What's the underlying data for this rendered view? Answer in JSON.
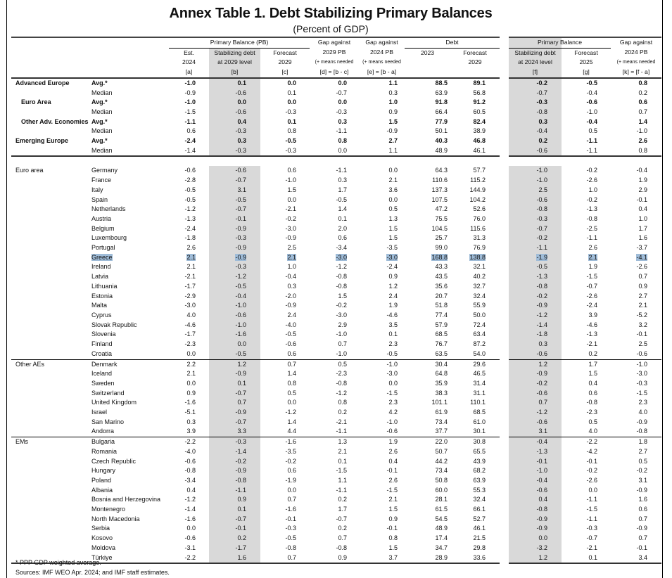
{
  "title": "Annex Table 1. Debt Stabilizing Primary Balances",
  "subtitle": "(Percent of GDP)",
  "header": {
    "group_pb": "Primary Balance (PB)",
    "group_debt": "Debt",
    "group_pb_right": "Primary Balance",
    "a": [
      "Est.",
      "2024",
      "[a]"
    ],
    "b": [
      "Stabilizing debt",
      "at 2029 level",
      "[b]"
    ],
    "c": [
      "Forecast",
      "2029",
      "[c]"
    ],
    "d": [
      "Gap against",
      "2029 PB",
      "(+ means needed",
      "[d] = [b - c]"
    ],
    "e": [
      "Gap against",
      "2024 PB",
      "(+ means needed",
      "[e] = [b - a]"
    ],
    "debt2023": [
      "2023"
    ],
    "debt2029": [
      "Forecast",
      "2029"
    ],
    "f": [
      "Stabilizing debt",
      "at 2024 level",
      "[f]"
    ],
    "g": [
      "Forecast",
      "2025",
      "[g]"
    ],
    "k": [
      "Gap against",
      "2024 PB",
      "(+ means needed",
      "[k] = [f - a]"
    ]
  },
  "summary_rows": [
    {
      "group": "Advanced Europe",
      "stat": "Avg.*",
      "bold": true,
      "indent": false,
      "values": [
        "-1.0",
        "0.1",
        "0.0",
        "0.0",
        "1.1",
        "88.5",
        "89.1",
        "-0.2",
        "-0.5",
        "0.8"
      ]
    },
    {
      "group": "",
      "stat": "Median",
      "bold": false,
      "values": [
        "-0.9",
        "-0.6",
        "0.1",
        "-0.7",
        "0.3",
        "63.9",
        "56.8",
        "-0.7",
        "-0.4",
        "0.2"
      ]
    },
    {
      "group": "Euro Area",
      "stat": "Avg.*",
      "bold": true,
      "indent": true,
      "values": [
        "-1.0",
        "0.0",
        "0.0",
        "0.0",
        "1.0",
        "91.8",
        "91.2",
        "-0.3",
        "-0.6",
        "0.6"
      ]
    },
    {
      "group": "",
      "stat": "Median",
      "bold": false,
      "values": [
        "-1.5",
        "-0.6",
        "-0.3",
        "-0.3",
        "0.9",
        "66.4",
        "60.5",
        "-0.8",
        "-1.0",
        "0.7"
      ]
    },
    {
      "group": "Other Adv. Economies",
      "stat": "Avg.*",
      "bold": true,
      "indent": true,
      "values": [
        "-1.1",
        "0.4",
        "0.1",
        "0.3",
        "1.5",
        "77.9",
        "82.4",
        "0.3",
        "-0.4",
        "1.4"
      ]
    },
    {
      "group": "",
      "stat": "Median",
      "bold": false,
      "values": [
        "0.6",
        "-0.3",
        "0.8",
        "-1.1",
        "-0.9",
        "50.1",
        "38.9",
        "-0.4",
        "0.5",
        "-1.0"
      ]
    },
    {
      "group": "Emerging Europe",
      "stat": "Avg.*",
      "bold": true,
      "indent": false,
      "values": [
        "-2.4",
        "0.3",
        "-0.5",
        "0.8",
        "2.7",
        "40.3",
        "46.8",
        "0.2",
        "-1.1",
        "2.6"
      ]
    },
    {
      "group": "",
      "stat": "Median",
      "bold": false,
      "values": [
        "-1.4",
        "-0.3",
        "-0.3",
        "0.0",
        "1.1",
        "48.9",
        "46.1",
        "-0.6",
        "-1.1",
        "0.8"
      ]
    }
  ],
  "groups": [
    {
      "name": "Euro area",
      "rows": [
        {
          "country": "Germany",
          "values": [
            "-0.6",
            "-0.6",
            "0.6",
            "-1.1",
            "0.0",
            "64.3",
            "57.7",
            "-1.0",
            "-0.2",
            "-0.4"
          ]
        },
        {
          "country": "France",
          "values": [
            "-2.8",
            "-0.7",
            "-1.0",
            "0.3",
            "2.1",
            "110.6",
            "115.2",
            "-1.0",
            "-2.6",
            "1.9"
          ]
        },
        {
          "country": "Italy",
          "values": [
            "-0.5",
            "3.1",
            "1.5",
            "1.7",
            "3.6",
            "137.3",
            "144.9",
            "2.5",
            "1.0",
            "2.9"
          ]
        },
        {
          "country": "Spain",
          "values": [
            "-0.5",
            "-0.5",
            "0.0",
            "-0.5",
            "0.0",
            "107.5",
            "104.2",
            "-0.6",
            "-0.2",
            "-0.1"
          ]
        },
        {
          "country": "Netherlands",
          "values": [
            "-1.2",
            "-0.7",
            "-2.1",
            "1.4",
            "0.5",
            "47.2",
            "52.6",
            "-0.8",
            "-1.3",
            "0.4"
          ]
        },
        {
          "country": "Austria",
          "values": [
            "-1.3",
            "-0.1",
            "-0.2",
            "0.1",
            "1.3",
            "75.5",
            "76.0",
            "-0.3",
            "-0.8",
            "1.0"
          ]
        },
        {
          "country": "Belgium",
          "values": [
            "-2.4",
            "-0.9",
            "-3.0",
            "2.0",
            "1.5",
            "104.5",
            "115.6",
            "-0.7",
            "-2.5",
            "1.7"
          ]
        },
        {
          "country": "Luxembourg",
          "values": [
            "-1.8",
            "-0.3",
            "-0.9",
            "0.6",
            "1.5",
            "25.7",
            "31.3",
            "-0.2",
            "-1.1",
            "1.6"
          ]
        },
        {
          "country": "Portugal",
          "values": [
            "2.6",
            "-0.9",
            "2.5",
            "-3.4",
            "-3.5",
            "99.0",
            "76.9",
            "-1.1",
            "2.6",
            "-3.7"
          ]
        },
        {
          "country": "Greece",
          "highlight": true,
          "values": [
            "2.1",
            "-0.9",
            "2.1",
            "-3.0",
            "-3.0",
            "168.8",
            "138.8",
            "-1.9",
            "2.1",
            "-4.1"
          ]
        },
        {
          "country": "Ireland",
          "values": [
            "2.1",
            "-0.3",
            "1.0",
            "-1.2",
            "-2.4",
            "43.3",
            "32.1",
            "-0.5",
            "1.9",
            "-2.6"
          ]
        },
        {
          "country": "Latvia",
          "values": [
            "-2.1",
            "-1.2",
            "-0.4",
            "-0.8",
            "0.9",
            "43.5",
            "40.2",
            "-1.3",
            "-1.5",
            "0.7"
          ]
        },
        {
          "country": "Lithuania",
          "values": [
            "-1.7",
            "-0.5",
            "0.3",
            "-0.8",
            "1.2",
            "35.6",
            "32.7",
            "-0.8",
            "-0.7",
            "0.9"
          ]
        },
        {
          "country": "Estonia",
          "values": [
            "-2.9",
            "-0.4",
            "-2.0",
            "1.5",
            "2.4",
            "20.7",
            "32.4",
            "-0.2",
            "-2.6",
            "2.7"
          ]
        },
        {
          "country": "Malta",
          "values": [
            "-3.0",
            "-1.0",
            "-0.9",
            "-0.2",
            "1.9",
            "51.8",
            "55.9",
            "-0.9",
            "-2.4",
            "2.1"
          ]
        },
        {
          "country": "Cyprus",
          "values": [
            "4.0",
            "-0.6",
            "2.4",
            "-3.0",
            "-4.6",
            "77.4",
            "50.0",
            "-1.2",
            "3.9",
            "-5.2"
          ]
        },
        {
          "country": "Slovak Republic",
          "values": [
            "-4.6",
            "-1.0",
            "-4.0",
            "2.9",
            "3.5",
            "57.9",
            "72.4",
            "-1.4",
            "-4.6",
            "3.2"
          ]
        },
        {
          "country": "Slovenia",
          "values": [
            "-1.7",
            "-1.6",
            "-0.5",
            "-1.0",
            "0.1",
            "68.5",
            "63.4",
            "-1.8",
            "-1.3",
            "-0.1"
          ]
        },
        {
          "country": "Finland",
          "values": [
            "-2.3",
            "0.0",
            "-0.6",
            "0.7",
            "2.3",
            "76.7",
            "87.2",
            "0.3",
            "-2.1",
            "2.5"
          ]
        },
        {
          "country": "Croatia",
          "values": [
            "0.0",
            "-0.5",
            "0.6",
            "-1.0",
            "-0.5",
            "63.5",
            "54.0",
            "-0.6",
            "0.2",
            "-0.6"
          ]
        }
      ]
    },
    {
      "name": "Other AEs",
      "rows": [
        {
          "country": "Denmark",
          "values": [
            "2.2",
            "1.2",
            "0.7",
            "0.5",
            "-1.0",
            "30.4",
            "29.6",
            "1.2",
            "1.7",
            "-1.0"
          ]
        },
        {
          "country": "Iceland",
          "values": [
            "2.1",
            "-0.9",
            "1.4",
            "-2.3",
            "-3.0",
            "64.8",
            "46.5",
            "-0.9",
            "1.5",
            "-3.0"
          ]
        },
        {
          "country": "Sweden",
          "values": [
            "0.0",
            "0.1",
            "0.8",
            "-0.8",
            "0.0",
            "35.9",
            "31.4",
            "-0.2",
            "0.4",
            "-0.3"
          ]
        },
        {
          "country": "Switzerland",
          "values": [
            "0.9",
            "-0.7",
            "0.5",
            "-1.2",
            "-1.5",
            "38.3",
            "31.1",
            "-0.6",
            "0.6",
            "-1.5"
          ]
        },
        {
          "country": "United Kingdom",
          "values": [
            "-1.6",
            "0.7",
            "0.0",
            "0.8",
            "2.3",
            "101.1",
            "110.1",
            "0.7",
            "-0.8",
            "2.3"
          ]
        },
        {
          "country": "Israel",
          "values": [
            "-5.1",
            "-0.9",
            "-1.2",
            "0.2",
            "4.2",
            "61.9",
            "68.5",
            "-1.2",
            "-2.3",
            "4.0"
          ]
        },
        {
          "country": "San Marino",
          "values": [
            "0.3",
            "-0.7",
            "1.4",
            "-2.1",
            "-1.0",
            "73.4",
            "61.0",
            "-0.6",
            "0.5",
            "-0.9"
          ]
        },
        {
          "country": "Andorra",
          "values": [
            "3.9",
            "3.3",
            "4.4",
            "-1.1",
            "-0.6",
            "37.7",
            "30.1",
            "3.1",
            "4.0",
            "-0.8"
          ]
        }
      ]
    },
    {
      "name": "EMs",
      "rows": [
        {
          "country": "Bulgaria",
          "values": [
            "-2.2",
            "-0.3",
            "-1.6",
            "1.3",
            "1.9",
            "22.0",
            "30.8",
            "-0.4",
            "-2.2",
            "1.8"
          ]
        },
        {
          "country": "Romania",
          "values": [
            "-4.0",
            "-1.4",
            "-3.5",
            "2.1",
            "2.6",
            "50.7",
            "65.5",
            "-1.3",
            "-4.2",
            "2.7"
          ]
        },
        {
          "country": "Czech Republic",
          "values": [
            "-0.6",
            "-0.2",
            "-0.2",
            "0.1",
            "0.4",
            "44.2",
            "43.9",
            "-0.1",
            "-0.1",
            "0.5"
          ]
        },
        {
          "country": "Hungary",
          "values": [
            "-0.8",
            "-0.9",
            "0.6",
            "-1.5",
            "-0.1",
            "73.4",
            "68.2",
            "-1.0",
            "-0.2",
            "-0.2"
          ]
        },
        {
          "country": "Poland",
          "values": [
            "-3.4",
            "-0.8",
            "-1.9",
            "1.1",
            "2.6",
            "50.8",
            "63.9",
            "-0.4",
            "-2.6",
            "3.1"
          ]
        },
        {
          "country": "Albania",
          "values": [
            "0.4",
            "-1.1",
            "0.0",
            "-1.1",
            "-1.5",
            "60.0",
            "55.3",
            "-0.6",
            "0.0",
            "-0.9"
          ]
        },
        {
          "country": "Bosnia and Herzegovina",
          "values": [
            "-1.2",
            "0.9",
            "0.7",
            "0.2",
            "2.1",
            "28.1",
            "32.4",
            "0.4",
            "-1.1",
            "1.6"
          ]
        },
        {
          "country": "Montenegro",
          "values": [
            "-1.4",
            "0.1",
            "-1.6",
            "1.7",
            "1.5",
            "61.5",
            "66.1",
            "-0.8",
            "-1.5",
            "0.6"
          ]
        },
        {
          "country": "North Macedonia",
          "values": [
            "-1.6",
            "-0.7",
            "-0.1",
            "-0.7",
            "0.9",
            "54.5",
            "52.7",
            "-0.9",
            "-1.1",
            "0.7"
          ]
        },
        {
          "country": "Serbia",
          "values": [
            "0.0",
            "-0.1",
            "-0.3",
            "0.2",
            "-0.1",
            "48.9",
            "46.1",
            "-0.9",
            "-0.3",
            "-0.9"
          ]
        },
        {
          "country": "Kosovo",
          "values": [
            "-0.6",
            "0.2",
            "-0.5",
            "0.7",
            "0.8",
            "17.4",
            "21.5",
            "0.0",
            "-0.7",
            "0.7"
          ]
        },
        {
          "country": "Moldova",
          "values": [
            "-3.1",
            "-1.7",
            "-0.8",
            "-0.8",
            "1.5",
            "34.7",
            "29.8",
            "-3.2",
            "-2.1",
            "-0.1"
          ]
        },
        {
          "country": "Türkiye",
          "values": [
            "-2.2",
            "1.6",
            "0.7",
            "0.9",
            "3.7",
            "28.9",
            "33.6",
            "1.2",
            "0.1",
            "3.4"
          ]
        }
      ]
    }
  ],
  "footnotes": [
    "* PPP GDP weighted average.",
    "Sources: IMF WEO Apr. 2024; and IMF staff estimates."
  ],
  "colors": {
    "shade": "#d9d9d9",
    "highlight": "#9fbcd8"
  }
}
